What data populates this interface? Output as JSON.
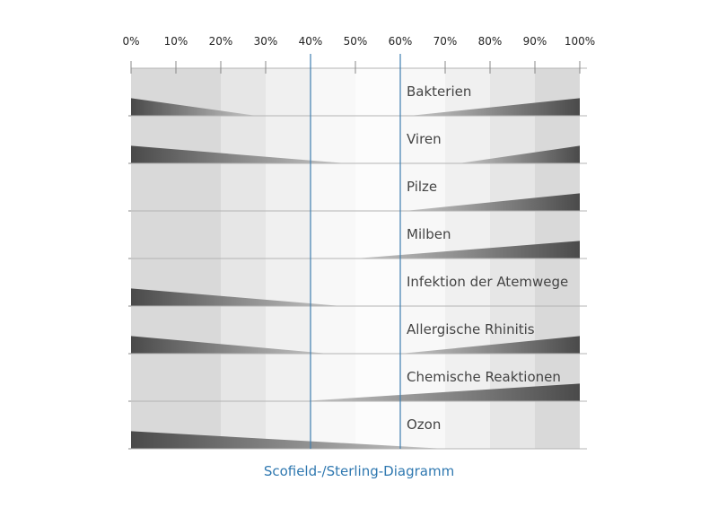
{
  "chart_data": {
    "type": "area",
    "title": "Scofield-/Sterling-Diagramm",
    "x_ticks": [
      "0%",
      "10%",
      "20%",
      "30%",
      "40%",
      "50%",
      "60%",
      "70%",
      "80%",
      "90%",
      "100%"
    ],
    "xlim": [
      0,
      100
    ],
    "grid": true,
    "reference_lines": [
      40,
      60
    ],
    "rows": [
      {
        "name": "Bakterien",
        "low_end": 28,
        "low_height": 0.37,
        "high_start": 62,
        "high_height": 0.37
      },
      {
        "name": "Viren",
        "low_end": 48,
        "low_height": 0.37,
        "high_start": 73,
        "high_height": 0.37
      },
      {
        "name": "Pilze",
        "low_end": null,
        "low_height": 0,
        "high_start": 61,
        "high_height": 0.37
      },
      {
        "name": "Milben",
        "low_end": null,
        "low_height": 0,
        "high_start": 50,
        "high_height": 0.37
      },
      {
        "name": "Infektion der Atemwege",
        "low_end": 47,
        "low_height": 0.37,
        "high_start": null,
        "high_height": 0
      },
      {
        "name": "Allergische Rhinitis",
        "low_end": 44,
        "low_height": 0.37,
        "high_start": 60,
        "high_height": 0.37
      },
      {
        "name": "Chemische Reaktionen",
        "low_end": null,
        "low_height": 0,
        "high_start": 38,
        "high_height": 0.37
      },
      {
        "name": "Ozon",
        "low_end": 70,
        "low_height": 0.37,
        "high_start": null,
        "high_height": 0
      }
    ],
    "zone_shades": [
      "#d9d9d9",
      "#d9d9d9",
      "#e6e6e6",
      "#f0f0f0",
      "#f8f8f8",
      "#fcfcfc",
      "#f8f8f8",
      "#f0f0f0",
      "#e6e6e6",
      "#d9d9d9"
    ],
    "colors": {
      "reference_line": "#3f7fb0",
      "gradient_dark": "#4a4a4a",
      "gradient_light": "#c8c8c8",
      "row_divider": "#b4b4b4",
      "title": "#2f78b0"
    }
  }
}
